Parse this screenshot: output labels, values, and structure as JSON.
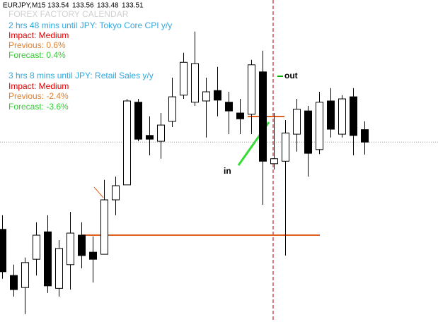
{
  "chart_data": {
    "type": "candlestick",
    "symbol": "EURJPY,M15",
    "ylim": [
      133.077,
      133.852
    ],
    "open": [
      133.3,
      133.189,
      133.16,
      133.228,
      133.294,
      133.158,
      133.215,
      133.286,
      133.245,
      133.24,
      133.371,
      133.407,
      133.606,
      133.526,
      133.512,
      133.56,
      133.623,
      133.606,
      133.609,
      133.634,
      133.606,
      133.58,
      133.577,
      133.679,
      133.458,
      133.464,
      133.529,
      133.585,
      133.492,
      133.609,
      133.529,
      133.619,
      133.54
    ],
    "high": [
      133.334,
      133.215,
      133.232,
      133.317,
      133.334,
      133.274,
      133.342,
      133.317,
      133.283,
      133.419,
      133.427,
      133.614,
      133.614,
      133.572,
      133.58,
      133.665,
      133.725,
      133.776,
      133.665,
      133.691,
      133.631,
      133.614,
      133.708,
      133.73,
      133.58,
      133.563,
      133.614,
      133.597,
      133.631,
      133.64,
      133.623,
      133.64,
      133.56
    ],
    "low": [
      133.181,
      133.138,
      133.096,
      133.189,
      133.147,
      133.138,
      133.155,
      133.206,
      133.172,
      133.24,
      133.334,
      133.407,
      133.512,
      133.478,
      133.47,
      133.546,
      133.614,
      133.597,
      133.521,
      133.572,
      133.529,
      133.529,
      133.529,
      133.359,
      133.444,
      133.237,
      133.487,
      133.427,
      133.481,
      133.521,
      133.521,
      133.478,
      133.48
    ],
    "close": [
      133.198,
      133.155,
      133.22,
      133.286,
      133.164,
      133.254,
      133.291,
      133.237,
      133.228,
      133.371,
      133.405,
      133.609,
      133.517,
      133.517,
      133.551,
      133.619,
      133.702,
      133.699,
      133.631,
      133.611,
      133.585,
      133.566,
      133.696,
      133.464,
      133.47,
      133.532,
      133.589,
      133.483,
      133.606,
      133.541,
      133.614,
      133.526,
      133.51
    ],
    "calendar": {
      "title": "FOREX FACTORY CALENDAR",
      "events": [
        {
          "countdown": "2 hrs 48 mins until JPY: Tokyo Core CPI y/y",
          "impact": "Impact: Medium",
          "previous": "Previous: 0.6%",
          "forecast": "Forecast: 0.4%"
        },
        {
          "countdown": "3 hrs 8 mins until JPY: Retail Sales y/y",
          "impact": "Impact: Medium",
          "previous": "Previous: -2.4%",
          "forecast": "Forecast: -3.6%"
        }
      ]
    },
    "annotations": [
      "in",
      "out"
    ]
  }
}
